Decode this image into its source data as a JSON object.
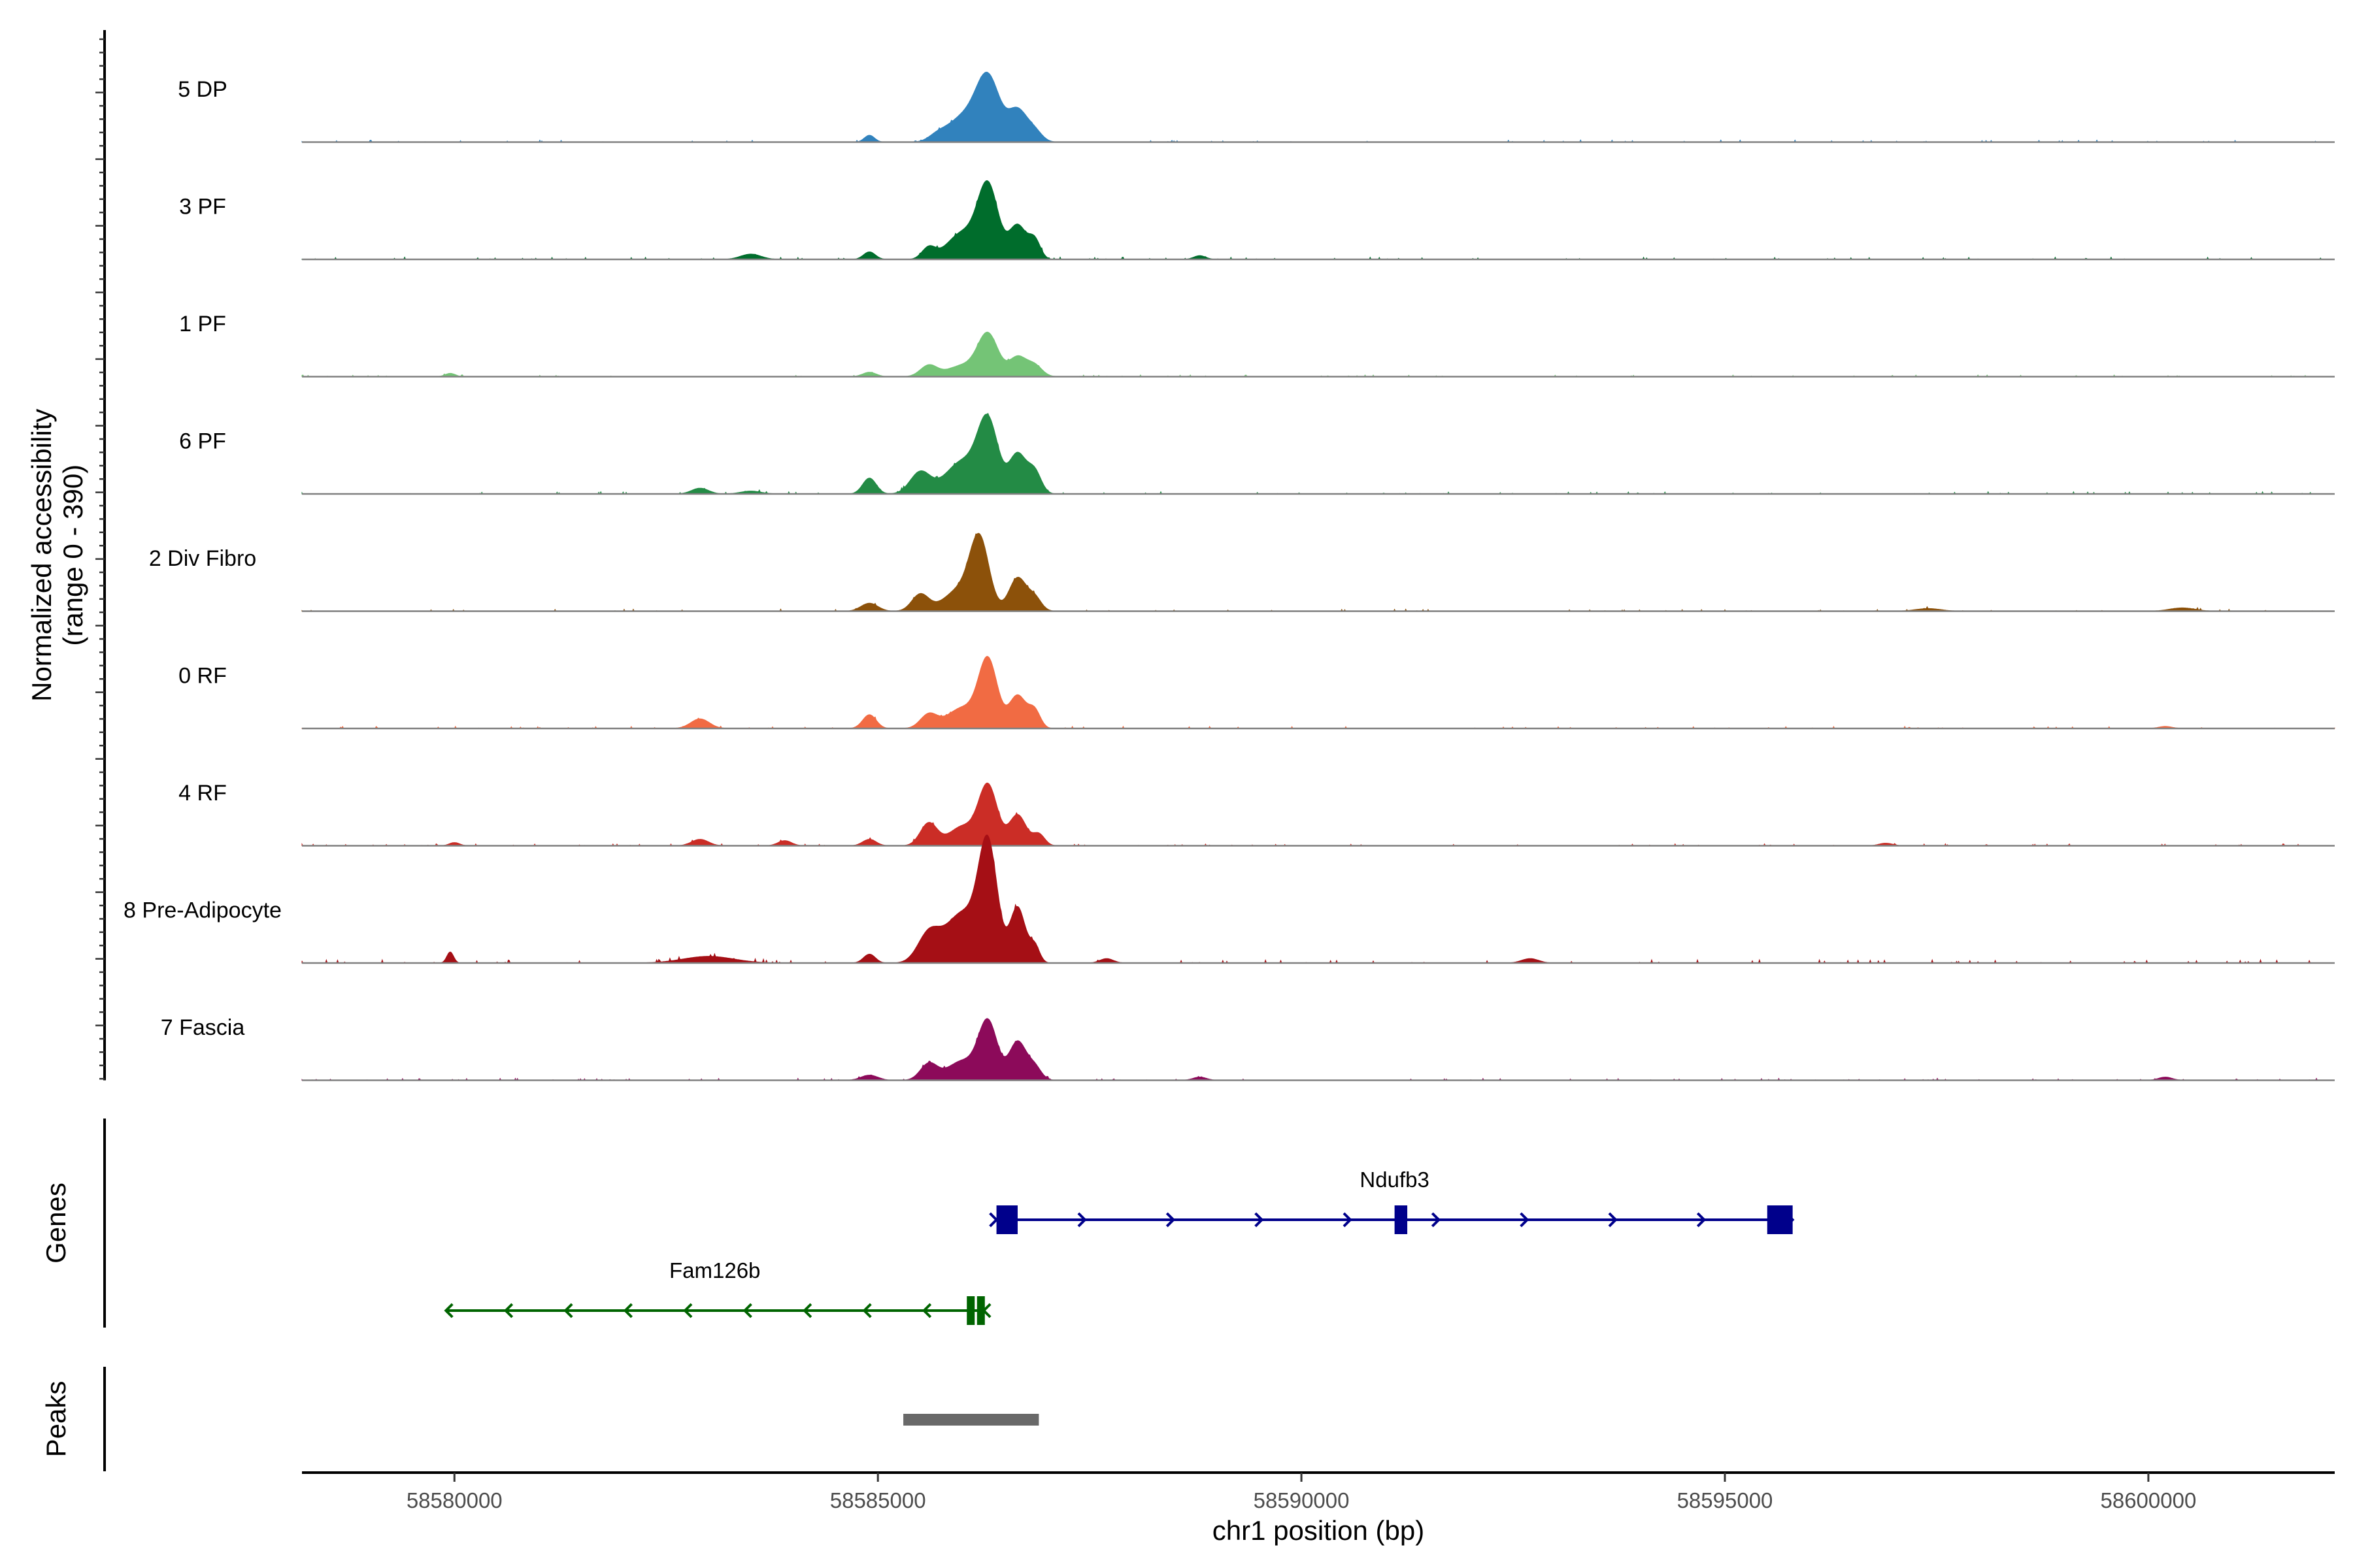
{
  "chart_data": {
    "type": "area",
    "title": "",
    "y_axis_title_line1": "Normalized accessibility",
    "y_axis_title_line2": "(range 0 - 390)",
    "y_range": [
      0,
      390
    ],
    "xlabel": "chr1 position (bp)",
    "xlim": [
      58578200,
      58602200
    ],
    "x_ticks": [
      58580000,
      58585000,
      58590000,
      58595000,
      58600000
    ],
    "x_tick_labels": [
      "58580000",
      "58585000",
      "58590000",
      "58595000",
      "58600000"
    ],
    "tracks": [
      {
        "name": "5 DP",
        "color": "#3182BD",
        "scale": 0.62,
        "peaks": [
          [
            58585700,
            0.08,
            100
          ],
          [
            58586000,
            0.35,
            180
          ],
          [
            58586300,
            0.92,
            140
          ],
          [
            58586650,
            0.45,
            110
          ],
          [
            58586850,
            0.15,
            90
          ],
          [
            58584900,
            0.1,
            60
          ]
        ]
      },
      {
        "name": "3 PF",
        "color": "#006D2C",
        "scale": 0.68,
        "peaks": [
          [
            58583500,
            0.07,
            120
          ],
          [
            58584900,
            0.1,
            70
          ],
          [
            58585600,
            0.15,
            80
          ],
          [
            58586000,
            0.35,
            180
          ],
          [
            58586300,
            0.95,
            120
          ],
          [
            58586650,
            0.45,
            100
          ],
          [
            58586850,
            0.25,
            70
          ],
          [
            58588800,
            0.05,
            70
          ]
        ]
      },
      {
        "name": "1 PF",
        "color": "#74C476",
        "scale": 0.5,
        "peaks": [
          [
            58579950,
            0.06,
            60
          ],
          [
            58584900,
            0.08,
            80
          ],
          [
            58585600,
            0.2,
            100
          ],
          [
            58586000,
            0.2,
            180
          ],
          [
            58586300,
            0.75,
            120
          ],
          [
            58586650,
            0.35,
            100
          ],
          [
            58586850,
            0.2,
            90
          ]
        ]
      },
      {
        "name": "6 PF",
        "color": "#238B45",
        "scale": 0.65,
        "peaks": [
          [
            58582900,
            0.08,
            100
          ],
          [
            58583500,
            0.04,
            120
          ],
          [
            58584900,
            0.22,
            80
          ],
          [
            58585500,
            0.3,
            120
          ],
          [
            58586000,
            0.45,
            200
          ],
          [
            58586300,
            0.95,
            120
          ],
          [
            58586650,
            0.55,
            100
          ],
          [
            58586850,
            0.3,
            80
          ]
        ]
      },
      {
        "name": "2 Div Fibro",
        "color": "#8C510A",
        "scale": 0.6,
        "peaks": [
          [
            58584900,
            0.12,
            100
          ],
          [
            58585500,
            0.25,
            100
          ],
          [
            58586000,
            0.35,
            200
          ],
          [
            58586200,
            0.95,
            110
          ],
          [
            58586650,
            0.5,
            100
          ],
          [
            58586850,
            0.2,
            80
          ],
          [
            58597400,
            0.04,
            150
          ],
          [
            58600400,
            0.05,
            150
          ]
        ]
      },
      {
        "name": "0 RF",
        "color": "#F16B43",
        "scale": 0.62,
        "peaks": [
          [
            58582900,
            0.14,
            110
          ],
          [
            58584900,
            0.2,
            80
          ],
          [
            58585600,
            0.2,
            100
          ],
          [
            58586000,
            0.3,
            180
          ],
          [
            58586300,
            0.97,
            110
          ],
          [
            58586650,
            0.48,
            100
          ],
          [
            58586850,
            0.25,
            70
          ],
          [
            58600200,
            0.03,
            80
          ]
        ]
      },
      {
        "name": "4 RF",
        "color": "#CB2D26",
        "scale": 0.58,
        "peaks": [
          [
            58580000,
            0.05,
            60
          ],
          [
            58582900,
            0.1,
            100
          ],
          [
            58583900,
            0.08,
            80
          ],
          [
            58584900,
            0.1,
            80
          ],
          [
            58585600,
            0.35,
            100
          ],
          [
            58586000,
            0.3,
            160
          ],
          [
            58586300,
            0.92,
            110
          ],
          [
            58586650,
            0.48,
            100
          ],
          [
            58586900,
            0.18,
            70
          ],
          [
            58596900,
            0.04,
            80
          ]
        ]
      },
      {
        "name": "8 Pre-Adipocyte",
        "color": "#A50F15",
        "scale": 1.0,
        "peaks": [
          [
            58579950,
            0.1,
            40
          ],
          [
            58583000,
            0.06,
            300
          ],
          [
            58584900,
            0.08,
            70
          ],
          [
            58585600,
            0.25,
            130
          ],
          [
            58586000,
            0.45,
            200
          ],
          [
            58586300,
            1.0,
            110
          ],
          [
            58586650,
            0.5,
            90
          ],
          [
            58586850,
            0.15,
            60
          ],
          [
            58587700,
            0.04,
            80
          ],
          [
            58592700,
            0.04,
            100
          ]
        ]
      },
      {
        "name": "7 Fascia",
        "color": "#8C0A5A",
        "scale": 0.58,
        "peaks": [
          [
            58584900,
            0.08,
            100
          ],
          [
            58585600,
            0.25,
            100
          ],
          [
            58586000,
            0.3,
            180
          ],
          [
            58586300,
            0.88,
            110
          ],
          [
            58586650,
            0.6,
            100
          ],
          [
            58586850,
            0.2,
            80
          ],
          [
            58588800,
            0.05,
            80
          ],
          [
            58600200,
            0.05,
            80
          ]
        ]
      }
    ],
    "genes_panel_label": "Genes",
    "genes": [
      {
        "name": "Ndufb3",
        "strand": "+",
        "color": "#00008B",
        "start": 58586400,
        "end": 58595800,
        "exons": [
          [
            58586400,
            58586650
          ],
          [
            58591100,
            58591250
          ],
          [
            58595500,
            58595800
          ]
        ]
      },
      {
        "name": "Fam126b",
        "strand": "-",
        "color": "#006400",
        "start": 58579900,
        "end": 58586250,
        "exons": [
          [
            58586050,
            58586130
          ],
          [
            58586170,
            58586250
          ]
        ]
      }
    ],
    "peaks_panel_label": "Peaks",
    "peak_regions": [
      {
        "start": 58585300,
        "end": 58586900,
        "color": "#696969"
      }
    ]
  }
}
